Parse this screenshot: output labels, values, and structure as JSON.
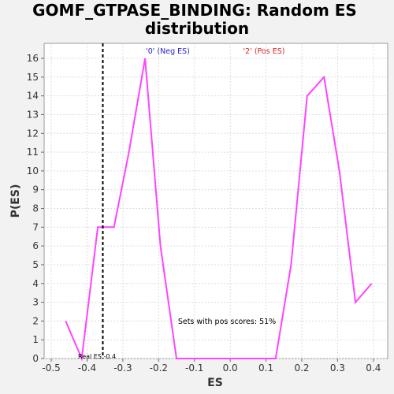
{
  "chart_data": {
    "type": "line",
    "title_line1": "GOMF_GTPASE_BINDING: Random ES",
    "title_line2": "distribution",
    "xlabel": "ES",
    "ylabel": "P(ES)",
    "xlim": [
      -0.52,
      0.44
    ],
    "ylim": [
      0,
      16.8
    ],
    "x_ticks": [
      "-0.5",
      "-0.4",
      "-0.3",
      "-0.2",
      "-0.1",
      "0.0",
      "0.1",
      "0.2",
      "0.3",
      "0.4"
    ],
    "x_tick_values": [
      -0.5,
      -0.4,
      -0.3,
      -0.2,
      -0.1,
      0.0,
      0.1,
      0.2,
      0.3,
      0.4
    ],
    "y_ticks": [
      "0",
      "1",
      "2",
      "3",
      "4",
      "5",
      "6",
      "7",
      "8",
      "9",
      "10",
      "11",
      "12",
      "13",
      "14",
      "15",
      "16"
    ],
    "y_tick_values": [
      0,
      1,
      2,
      3,
      4,
      5,
      6,
      7,
      8,
      9,
      10,
      11,
      12,
      13,
      14,
      15,
      16
    ],
    "grid": true,
    "series": [
      {
        "color": "#ff44ff",
        "x": [
          -0.46,
          -0.415,
          -0.37,
          -0.325,
          -0.283,
          -0.238,
          -0.195,
          -0.15,
          0.127,
          0.17,
          0.215,
          0.262,
          0.305,
          0.35,
          0.395
        ],
        "y": [
          2,
          0,
          7,
          7,
          11,
          16,
          6,
          0,
          0,
          5,
          14,
          15,
          10,
          3,
          4
        ]
      }
    ],
    "real_es": {
      "value": -0.356,
      "label": "Real ES -0.4",
      "line_color": "#000000",
      "line_style": "dashed"
    },
    "legend": [
      {
        "label": "'0' (Neg ES)",
        "color": "#2222cc"
      },
      {
        "label": "'2' (Pos ES)",
        "color": "#dd2222"
      }
    ],
    "legend_placement": "top-center",
    "annotation": "Sets with pos scores: 51%",
    "plot_background": "#ffffff",
    "grid_color": "#dddddd"
  }
}
